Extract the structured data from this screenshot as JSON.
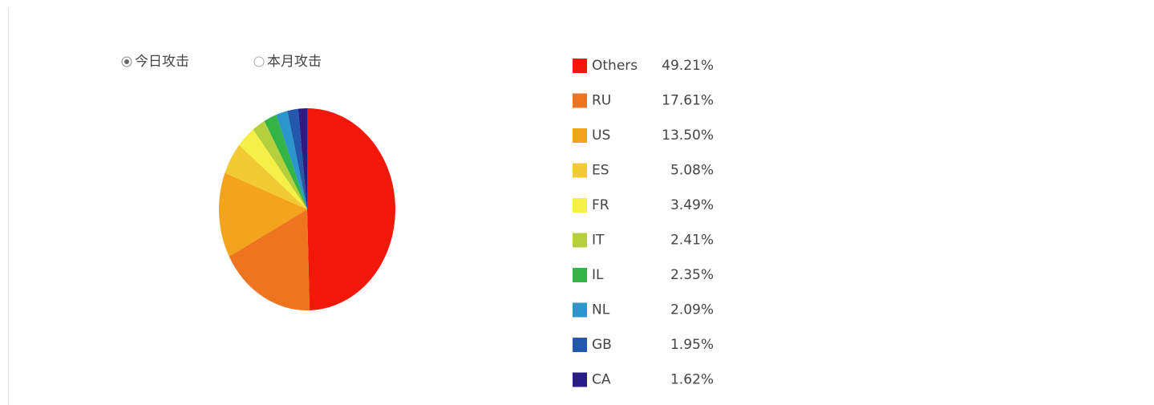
{
  "chart_data": {
    "type": "pie",
    "options": [
      "今日攻击",
      "本月攻击"
    ],
    "categories": [
      "Others",
      "RU",
      "US",
      "ES",
      "FR",
      "IT",
      "IL",
      "NL",
      "GB",
      "CA"
    ],
    "values": [
      49.21,
      17.61,
      13.5,
      5.08,
      3.49,
      2.41,
      2.35,
      2.09,
      1.95,
      1.62
    ],
    "value_labels": [
      "49.21%",
      "17.61%",
      "13.50%",
      "5.08%",
      "3.49%",
      "2.41%",
      "2.35%",
      "2.09%",
      "1.95%",
      "1.62%"
    ],
    "colors": [
      "#f4180a",
      "#ee7420",
      "#f3a41c",
      "#f2cb34",
      "#f4f046",
      "#b6cf3c",
      "#32b446",
      "#2a96cc",
      "#2458ac",
      "#2a1c88"
    ]
  }
}
